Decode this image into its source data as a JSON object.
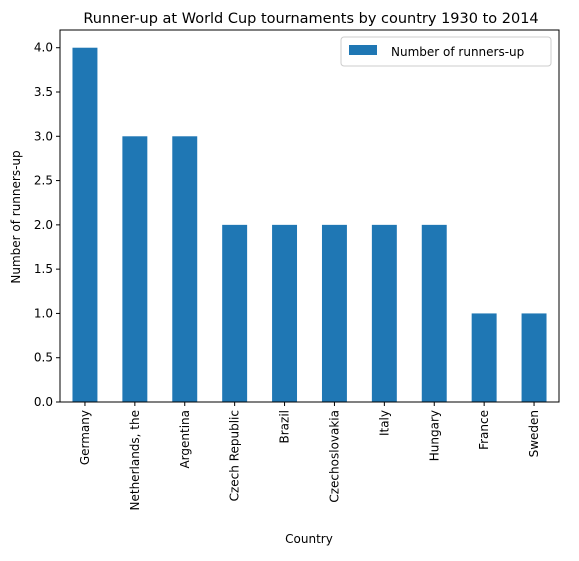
{
  "chart_data": {
    "type": "bar",
    "title": "Runner-up at World Cup tournaments by country 1930 to 2014",
    "xlabel": "Country",
    "ylabel": "Number of runners-up",
    "categories": [
      "Germany",
      "Netherlands, the",
      "Argentina",
      "Czech Republic",
      "Brazil",
      "Czechoslovakia",
      "Italy",
      "Hungary",
      "France",
      "Sweden"
    ],
    "series": [
      {
        "name": "Number of runners-up",
        "values": [
          4,
          3,
          3,
          2,
          2,
          2,
          2,
          2,
          1,
          1
        ],
        "color": "#1f77b4"
      }
    ],
    "ylim": [
      0,
      4.2
    ],
    "yticks": [
      "0.0",
      "0.5",
      "1.0",
      "1.5",
      "2.0",
      "2.5",
      "3.0",
      "3.5",
      "4.0"
    ],
    "grid": false,
    "legend_position": "top-right"
  }
}
